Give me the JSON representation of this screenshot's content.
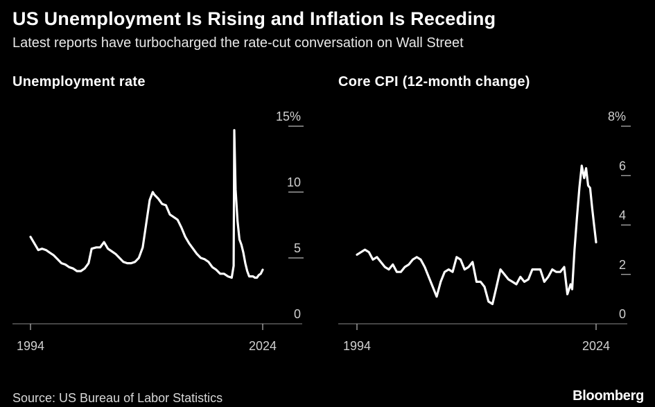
{
  "title": "US Unemployment Is Rising and Inflation Is Receding",
  "subtitle": "Latest reports have turbocharged the rate-cut conversation on Wall Street",
  "source": "Source: US Bureau of Labor Statistics",
  "brand": "Bloomberg",
  "chart_data": [
    {
      "type": "line",
      "title": "Unemployment rate",
      "y_unit": "%",
      "ylim": [
        0,
        15
      ],
      "yticks": [
        0,
        5,
        10,
        15
      ],
      "ytick_labels": [
        "0",
        "5",
        "10",
        "15%"
      ],
      "xlim": [
        1994,
        2024
      ],
      "xtick_labels": [
        "1994",
        "2024"
      ],
      "grid": false,
      "series": [
        {
          "x": [
            1994.0,
            1994.5,
            1995.0,
            1995.5,
            1996.0,
            1996.5,
            1997.0,
            1997.5,
            1998.0,
            1998.5,
            1999.0,
            1999.5,
            2000.0,
            2000.5,
            2001.0,
            2001.5,
            2001.9,
            2002.5,
            2003.0,
            2003.5,
            2004.0,
            2004.5,
            2005.0,
            2005.5,
            2006.0,
            2006.5,
            2007.0,
            2007.5,
            2008.0,
            2008.5,
            2009.0,
            2009.4,
            2009.8,
            2010.0,
            2010.5,
            2011.0,
            2011.5,
            2012.0,
            2012.5,
            2013.0,
            2013.5,
            2014.0,
            2014.5,
            2015.0,
            2015.5,
            2016.0,
            2016.5,
            2017.0,
            2017.5,
            2018.0,
            2018.5,
            2019.0,
            2019.5,
            2020.0,
            2020.25,
            2020.33,
            2020.5,
            2020.75,
            2021.0,
            2021.25,
            2021.5,
            2021.75,
            2022.0,
            2022.25,
            2022.5,
            2022.75,
            2023.0,
            2023.25,
            2023.5,
            2023.75,
            2024.0
          ],
          "y": [
            6.6,
            6.1,
            5.6,
            5.7,
            5.6,
            5.4,
            5.2,
            4.9,
            4.6,
            4.5,
            4.3,
            4.2,
            4.0,
            4.0,
            4.2,
            4.6,
            5.7,
            5.8,
            5.8,
            6.2,
            5.7,
            5.5,
            5.3,
            5.0,
            4.7,
            4.6,
            4.6,
            4.7,
            5.0,
            5.8,
            7.8,
            9.4,
            10.0,
            9.8,
            9.5,
            9.1,
            9.0,
            8.3,
            8.1,
            7.9,
            7.3,
            6.6,
            6.1,
            5.7,
            5.3,
            5.0,
            4.9,
            4.7,
            4.3,
            4.1,
            3.8,
            3.8,
            3.6,
            3.5,
            4.4,
            14.7,
            10.2,
            7.8,
            6.4,
            6.0,
            5.4,
            4.6,
            4.0,
            3.6,
            3.6,
            3.6,
            3.5,
            3.5,
            3.7,
            3.8,
            4.1
          ]
        }
      ]
    },
    {
      "type": "line",
      "title": "Core CPI (12-month change)",
      "y_unit": "%",
      "ylim": [
        0,
        8
      ],
      "yticks": [
        0,
        2,
        4,
        6,
        8
      ],
      "ytick_labels": [
        "0",
        "2",
        "4",
        "6",
        "8%"
      ],
      "xlim": [
        1994,
        2024
      ],
      "xtick_labels": [
        "1994",
        "2024"
      ],
      "grid": false,
      "series": [
        {
          "x": [
            1994.0,
            1994.5,
            1995.0,
            1995.5,
            1996.0,
            1996.5,
            1997.0,
            1997.5,
            1998.0,
            1998.5,
            1999.0,
            1999.5,
            2000.0,
            2000.5,
            2001.0,
            2001.5,
            2002.0,
            2002.5,
            2003.0,
            2003.5,
            2004.0,
            2004.5,
            2005.0,
            2005.5,
            2006.0,
            2006.5,
            2007.0,
            2007.5,
            2008.0,
            2008.5,
            2009.0,
            2009.5,
            2010.0,
            2010.5,
            2011.0,
            2011.5,
            2012.0,
            2012.5,
            2013.0,
            2013.5,
            2014.0,
            2014.5,
            2015.0,
            2015.5,
            2016.0,
            2016.5,
            2017.0,
            2017.5,
            2018.0,
            2018.5,
            2019.0,
            2019.5,
            2020.0,
            2020.4,
            2020.8,
            2021.0,
            2021.3,
            2021.6,
            2021.9,
            2022.2,
            2022.5,
            2022.75,
            2023.0,
            2023.25,
            2023.5,
            2023.75,
            2024.0
          ],
          "y": [
            2.8,
            2.9,
            3.0,
            2.9,
            2.6,
            2.7,
            2.5,
            2.3,
            2.2,
            2.4,
            2.1,
            2.1,
            2.3,
            2.4,
            2.6,
            2.7,
            2.6,
            2.3,
            1.9,
            1.5,
            1.1,
            1.7,
            2.1,
            2.2,
            2.1,
            2.7,
            2.6,
            2.2,
            2.3,
            2.5,
            1.7,
            1.7,
            1.5,
            0.9,
            0.8,
            1.5,
            2.2,
            2.0,
            1.8,
            1.7,
            1.6,
            1.9,
            1.7,
            1.8,
            2.2,
            2.2,
            2.2,
            1.7,
            1.9,
            2.2,
            2.1,
            2.1,
            2.3,
            1.2,
            1.6,
            1.4,
            3.0,
            4.3,
            5.5,
            6.4,
            5.9,
            6.3,
            5.6,
            5.5,
            4.7,
            4.0,
            3.3
          ]
        }
      ]
    }
  ]
}
